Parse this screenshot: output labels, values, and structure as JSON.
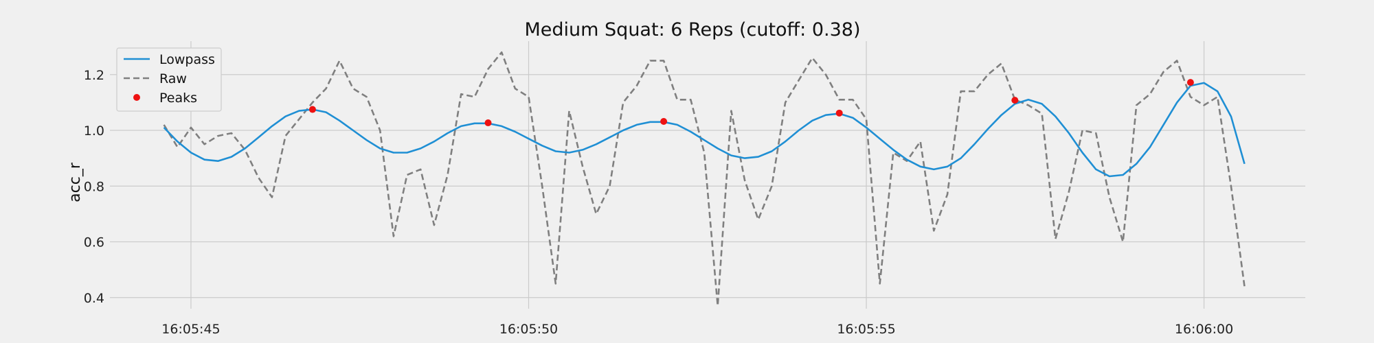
{
  "chart_data": {
    "type": "line",
    "title": "Medium Squat: 6 Reps (cutoff: 0.38)",
    "xlabel": "",
    "ylabel": "acc_r",
    "xlim": [
      -1.2,
      16.5
    ],
    "ylim": [
      0.36,
      1.32
    ],
    "xticks": [
      {
        "value": 0,
        "label": "16:05:45"
      },
      {
        "value": 5,
        "label": "16:05:50"
      },
      {
        "value": 10,
        "label": "16:05:55"
      },
      {
        "value": 15,
        "label": "16:06:00"
      }
    ],
    "yticks": [
      0.4,
      0.6,
      0.8,
      1.0,
      1.2
    ],
    "ytick_labels": [
      "0.4",
      "0.6",
      "0.8",
      "1.0",
      "1.2"
    ],
    "grid": true,
    "legend": "upper-left",
    "series": [
      {
        "name": "Lowpass",
        "style": "solid",
        "color": "#1f8fd4",
        "x": [
          -0.4,
          -0.2,
          0.0,
          0.2,
          0.4,
          0.6,
          0.8,
          1.0,
          1.2,
          1.4,
          1.6,
          1.8,
          2.0,
          2.2,
          2.4,
          2.6,
          2.8,
          3.0,
          3.2,
          3.4,
          3.6,
          3.8,
          4.0,
          4.2,
          4.4,
          4.6,
          4.8,
          5.0,
          5.2,
          5.4,
          5.6,
          5.8,
          6.0,
          6.2,
          6.4,
          6.6,
          6.8,
          7.0,
          7.2,
          7.4,
          7.6,
          7.8,
          8.0,
          8.2,
          8.4,
          8.6,
          8.8,
          9.0,
          9.2,
          9.4,
          9.6,
          9.8,
          10.0,
          10.2,
          10.4,
          10.6,
          10.8,
          11.0,
          11.2,
          11.4,
          11.6,
          11.8,
          12.0,
          12.2,
          12.4,
          12.6,
          12.8,
          13.0,
          13.2,
          13.4,
          13.6,
          13.8,
          14.0,
          14.2,
          14.4,
          14.6,
          14.8,
          15.0,
          15.2,
          15.4,
          15.6
        ],
        "y": [
          1.01,
          0.96,
          0.92,
          0.895,
          0.89,
          0.905,
          0.935,
          0.975,
          1.015,
          1.05,
          1.07,
          1.075,
          1.065,
          1.035,
          1.0,
          0.965,
          0.935,
          0.92,
          0.92,
          0.935,
          0.96,
          0.99,
          1.015,
          1.025,
          1.025,
          1.015,
          0.995,
          0.97,
          0.945,
          0.925,
          0.92,
          0.93,
          0.95,
          0.975,
          1.0,
          1.02,
          1.03,
          1.03,
          1.02,
          0.995,
          0.965,
          0.935,
          0.91,
          0.9,
          0.905,
          0.925,
          0.96,
          1.0,
          1.035,
          1.055,
          1.06,
          1.045,
          1.01,
          0.97,
          0.93,
          0.895,
          0.87,
          0.86,
          0.87,
          0.9,
          0.95,
          1.005,
          1.055,
          1.095,
          1.11,
          1.095,
          1.05,
          0.99,
          0.92,
          0.86,
          0.835,
          0.84,
          0.88,
          0.94,
          1.02,
          1.1,
          1.16,
          1.17,
          1.14,
          1.05,
          0.88
        ]
      },
      {
        "name": "Raw",
        "style": "dashed",
        "color": "#7f7f7f",
        "x": [
          -0.4,
          -0.2,
          0.0,
          0.2,
          0.4,
          0.6,
          0.8,
          1.0,
          1.2,
          1.4,
          1.6,
          1.8,
          2.0,
          2.2,
          2.4,
          2.6,
          2.8,
          3.0,
          3.2,
          3.4,
          3.6,
          3.8,
          4.0,
          4.2,
          4.4,
          4.6,
          4.8,
          5.0,
          5.2,
          5.4,
          5.6,
          5.8,
          6.0,
          6.2,
          6.4,
          6.6,
          6.8,
          7.0,
          7.2,
          7.4,
          7.6,
          7.8,
          8.0,
          8.2,
          8.4,
          8.6,
          8.8,
          9.0,
          9.2,
          9.4,
          9.6,
          9.8,
          10.0,
          10.2,
          10.4,
          10.6,
          10.8,
          11.0,
          11.2,
          11.4,
          11.6,
          11.8,
          12.0,
          12.2,
          12.4,
          12.6,
          12.8,
          13.0,
          13.2,
          13.4,
          13.6,
          13.8,
          14.0,
          14.2,
          14.4,
          14.6,
          14.8,
          15.0,
          15.2,
          15.4,
          15.6
        ],
        "y": [
          1.02,
          0.94,
          1.01,
          0.95,
          0.98,
          0.99,
          0.93,
          0.83,
          0.76,
          0.98,
          1.04,
          1.1,
          1.15,
          1.25,
          1.15,
          1.12,
          1.0,
          0.62,
          0.84,
          0.86,
          0.66,
          0.84,
          1.13,
          1.12,
          1.22,
          1.28,
          1.15,
          1.12,
          0.8,
          0.45,
          1.07,
          0.87,
          0.7,
          0.8,
          1.1,
          1.16,
          1.25,
          1.25,
          1.11,
          1.11,
          0.92,
          0.37,
          1.07,
          0.82,
          0.68,
          0.8,
          1.1,
          1.18,
          1.26,
          1.2,
          1.11,
          1.11,
          1.04,
          0.45,
          0.92,
          0.89,
          0.96,
          0.64,
          0.77,
          1.14,
          1.14,
          1.2,
          1.24,
          1.11,
          1.09,
          1.06,
          0.61,
          0.78,
          1.0,
          0.99,
          0.76,
          0.6,
          1.09,
          1.13,
          1.21,
          1.25,
          1.12,
          1.09,
          1.12,
          0.8,
          0.44
        ]
      },
      {
        "name": "Peaks",
        "style": "markers",
        "color": "#ee1111",
        "x": [
          1.8,
          4.4,
          7.0,
          9.6,
          12.2,
          14.8
        ],
        "y": [
          1.075,
          1.027,
          1.032,
          1.062,
          1.108,
          1.172
        ]
      }
    ]
  }
}
